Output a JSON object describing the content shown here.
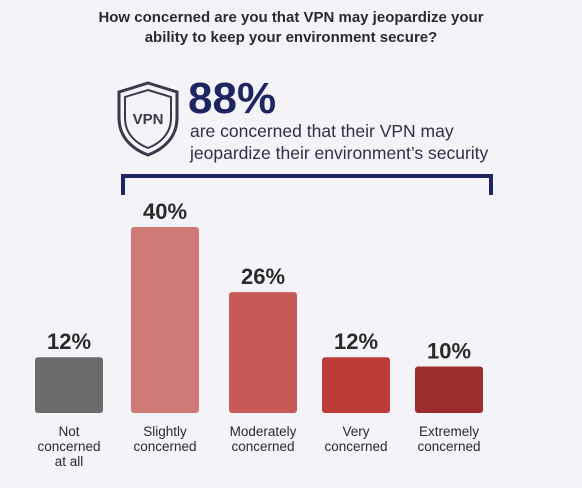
{
  "title_lines": [
    "How concerned are you that VPN may jeopardize your",
    "ability to keep your environment secure?"
  ],
  "callout": {
    "icon_label": "VPN",
    "percent": "88%",
    "text_lines": [
      "are concerned that their VPN may",
      "jeopardize their environment’s security"
    ]
  },
  "colors": {
    "navy": "#1f2560",
    "bars": [
      "#6b6b6b",
      "#d07a78",
      "#c65a56",
      "#bd3c38",
      "#9e2e2d"
    ]
  },
  "chart_data": {
    "type": "bar",
    "categories": [
      [
        "Not",
        "concerned",
        "at all"
      ],
      [
        "Slightly",
        "concerned"
      ],
      [
        "Moderately",
        "concerned"
      ],
      [
        "Very",
        "concerned"
      ],
      [
        "Extremely",
        "concerned"
      ]
    ],
    "values": [
      12,
      40,
      26,
      12,
      10
    ],
    "value_labels": [
      "12%",
      "40%",
      "26%",
      "12%",
      "10%"
    ],
    "unit": "%",
    "title": "How concerned are you that VPN may jeopardize your ability to keep your environment secure?",
    "xlabel": "",
    "ylabel": "",
    "ylim": [
      0,
      40
    ],
    "grid": false,
    "legend": "none"
  }
}
